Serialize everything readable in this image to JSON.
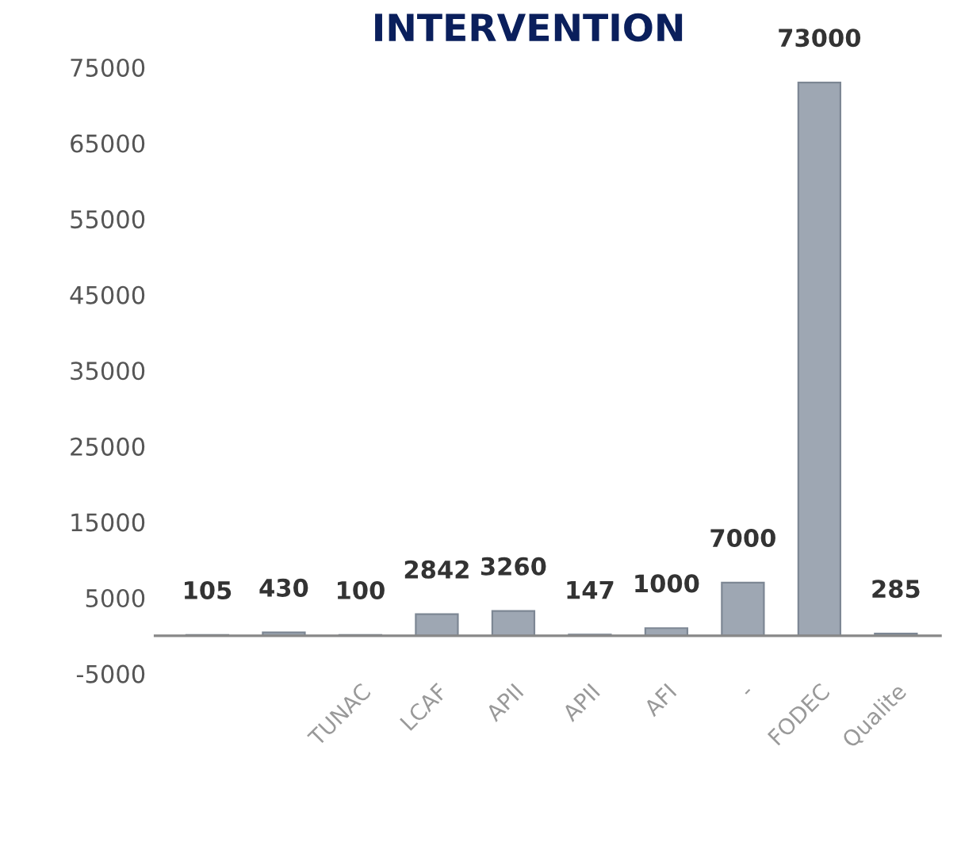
{
  "chart_data": {
    "type": "bar",
    "title": "INTERVENTION",
    "categories": [
      null,
      null,
      "TUNAC",
      "LCAF",
      "APII",
      "APII",
      "AFI",
      "-",
      "FODEC",
      "Qualite"
    ],
    "values": [
      105,
      430,
      100,
      2842,
      3260,
      147,
      1000,
      7000,
      73000,
      285
    ],
    "color": "#9ea7b3",
    "data_labels": true,
    "ylim": [
      -5000,
      75000
    ],
    "yticks": [
      -5000,
      5000,
      15000,
      25000,
      35000,
      45000,
      55000,
      65000,
      75000
    ],
    "grid": false,
    "legend": false
  }
}
